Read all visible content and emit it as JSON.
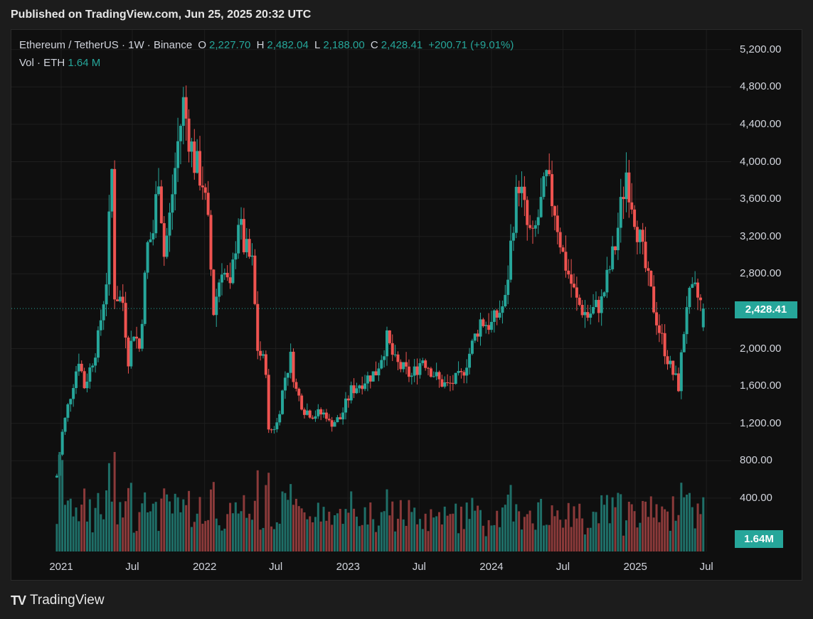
{
  "header": {
    "published": "Published on TradingView.com, Jun 25, 2025 20:32 UTC"
  },
  "legend": {
    "pair": "Ethereum / TetherUS · 1W · Binance",
    "o_label": "O",
    "o_value": "2,227.70",
    "h_label": "H",
    "h_value": "2,482.04",
    "l_label": "L",
    "l_value": "2,188.00",
    "c_label": "C",
    "c_value": "2,428.41",
    "change": "+200.71 (+9.01%)"
  },
  "volume_legend": {
    "label": "Vol · ETH",
    "value": "1.64 M"
  },
  "price_badge": "2,428.41",
  "volume_badge": "1.64M",
  "brand": {
    "name": "TradingView",
    "logo_icon": "tradingview-logo-icon"
  },
  "colors": {
    "up": "#26a69a",
    "down": "#ef5350",
    "background": "#0f0f0f"
  },
  "chart_data": {
    "type": "candlestick",
    "title": "Ethereum / TetherUS · 1W · Binance",
    "y_ticks": [
      "5,200.00",
      "4,800.00",
      "4,400.00",
      "4,000.00",
      "3,600.00",
      "3,200.00",
      "2,800.00",
      "2,000.00",
      "1,600.00",
      "1,200.00",
      "800.00",
      "400.00"
    ],
    "y_tick_values": [
      5200,
      4800,
      4400,
      4000,
      3600,
      3200,
      2800,
      2000,
      1600,
      1200,
      800,
      400
    ],
    "x_ticks": [
      "2021",
      "Jul",
      "2022",
      "Jul",
      "2023",
      "Jul",
      "2024",
      "Jul",
      "2025",
      "Jul"
    ],
    "x_tick_dates": [
      "2021-01-01",
      "2021-07-01",
      "2022-01-01",
      "2022-07-01",
      "2023-01-01",
      "2023-07-01",
      "2024-01-01",
      "2024-07-01",
      "2025-01-01",
      "2025-07-01"
    ],
    "ylim": [
      0,
      5400
    ],
    "last_close": 2428.41,
    "series": {
      "close_path_points": [
        [
          "2020-12-21",
          640
        ],
        [
          "2021-01-04",
          1100
        ],
        [
          "2021-01-18",
          1380
        ],
        [
          "2021-02-15",
          1900
        ],
        [
          "2021-03-01",
          1600
        ],
        [
          "2021-03-15",
          1780
        ],
        [
          "2021-04-05",
          2100
        ],
        [
          "2021-04-26",
          2750
        ],
        [
          "2021-05-10",
          3900
        ],
        [
          "2021-05-17",
          2600
        ],
        [
          "2021-06-07",
          2500
        ],
        [
          "2021-06-21",
          1900
        ],
        [
          "2021-07-05",
          2200
        ],
        [
          "2021-07-19",
          2000
        ],
        [
          "2021-08-09",
          3100
        ],
        [
          "2021-08-23",
          3250
        ],
        [
          "2021-09-06",
          3900
        ],
        [
          "2021-09-20",
          3000
        ],
        [
          "2021-10-04",
          3400
        ],
        [
          "2021-10-25",
          4200
        ],
        [
          "2021-11-08",
          4620
        ],
        [
          "2021-11-22",
          4300
        ],
        [
          "2021-12-06",
          4000
        ],
        [
          "2021-12-27",
          3800
        ],
        [
          "2022-01-10",
          3300
        ],
        [
          "2022-01-24",
          2400
        ],
        [
          "2022-02-14",
          2900
        ],
        [
          "2022-03-07",
          2600
        ],
        [
          "2022-03-28",
          3400
        ],
        [
          "2022-04-11",
          3100
        ],
        [
          "2022-05-02",
          2900
        ],
        [
          "2022-05-16",
          2000
        ],
        [
          "2022-06-06",
          1800
        ],
        [
          "2022-06-13",
          1100
        ],
        [
          "2022-07-04",
          1200
        ],
        [
          "2022-07-25",
          1700
        ],
        [
          "2022-08-08",
          1900
        ],
        [
          "2022-08-22",
          1550
        ],
        [
          "2022-09-12",
          1350
        ],
        [
          "2022-10-03",
          1300
        ],
        [
          "2022-11-07",
          1300
        ],
        [
          "2022-11-14",
          1200
        ],
        [
          "2022-12-12",
          1250
        ],
        [
          "2023-01-09",
          1550
        ],
        [
          "2023-02-06",
          1650
        ],
        [
          "2023-03-13",
          1750
        ],
        [
          "2023-04-10",
          2100
        ],
        [
          "2023-05-01",
          1850
        ],
        [
          "2023-06-12",
          1700
        ],
        [
          "2023-07-10",
          1900
        ],
        [
          "2023-08-21",
          1650
        ],
        [
          "2023-09-11",
          1600
        ],
        [
          "2023-10-16",
          1700
        ],
        [
          "2023-11-06",
          1950
        ],
        [
          "2023-12-04",
          2300
        ],
        [
          "2024-01-01",
          2250
        ],
        [
          "2024-02-05",
          2500
        ],
        [
          "2024-02-26",
          3400
        ],
        [
          "2024-03-11",
          3800
        ],
        [
          "2024-04-01",
          3300
        ],
        [
          "2024-04-15",
          3150
        ],
        [
          "2024-05-20",
          3800
        ],
        [
          "2024-06-10",
          3500
        ],
        [
          "2024-07-01",
          3000
        ],
        [
          "2024-08-05",
          2500
        ],
        [
          "2024-09-02",
          2350
        ],
        [
          "2024-10-07",
          2500
        ],
        [
          "2024-11-11",
          3100
        ],
        [
          "2024-12-09",
          3900
        ],
        [
          "2025-01-06",
          3300
        ],
        [
          "2025-02-03",
          2700
        ],
        [
          "2025-03-03",
          2200
        ],
        [
          "2025-03-31",
          1800
        ],
        [
          "2025-04-21",
          1600
        ],
        [
          "2025-05-12",
          2500
        ],
        [
          "2025-06-02",
          2600
        ],
        [
          "2025-06-23",
          2428.41
        ]
      ]
    }
  }
}
